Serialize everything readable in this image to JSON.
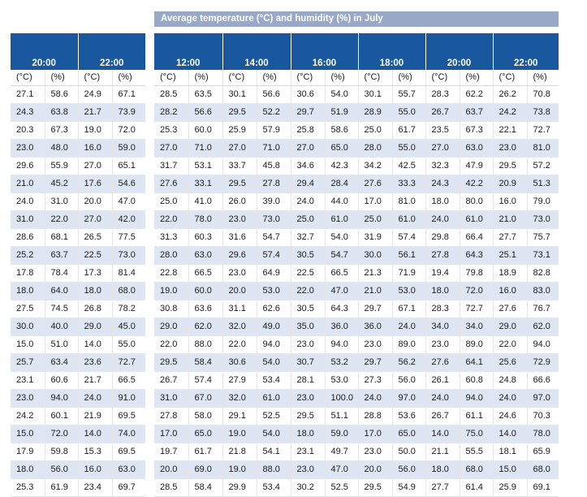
{
  "title": "Average temperature (°C) and humidity (%) in July",
  "unit_labels": [
    "(°C)",
    "(%)"
  ],
  "left_times": [
    "20:00",
    "22:00"
  ],
  "right_times": [
    "12:00",
    "14:00",
    "16:00",
    "18:00",
    "20:00",
    "22:00"
  ],
  "left_rows": [
    [
      "27.1",
      "58.6",
      "24.9",
      "67.1"
    ],
    [
      "24.3",
      "63.8",
      "21.7",
      "73.9"
    ],
    [
      "20.3",
      "67.3",
      "19.0",
      "72.0"
    ],
    [
      "23.0",
      "48.0",
      "16.0",
      "59.0"
    ],
    [
      "29.6",
      "55.9",
      "27.0",
      "65.1"
    ],
    [
      "21.0",
      "45.2",
      "17.6",
      "54.6"
    ],
    [
      "24.0",
      "31.0",
      "20.0",
      "47.0"
    ],
    [
      "31.0",
      "22.0",
      "27.0",
      "42.0"
    ],
    [
      "28.6",
      "68.1",
      "26.5",
      "77.5"
    ],
    [
      "25.2",
      "63.7",
      "22.5",
      "73.0"
    ],
    [
      "17.8",
      "78.4",
      "17.3",
      "81.4"
    ],
    [
      "18.0",
      "64.0",
      "18.0",
      "68.0"
    ],
    [
      "27.5",
      "74.5",
      "26.8",
      "78.2"
    ],
    [
      "30.0",
      "40.0",
      "29.0",
      "45.0"
    ],
    [
      "15.0",
      "51.0",
      "14.0",
      "55.0"
    ],
    [
      "25.7",
      "63.4",
      "23.6",
      "72.7"
    ],
    [
      "23.1",
      "60.6",
      "21.7",
      "66.5"
    ],
    [
      "23.0",
      "94.0",
      "24.0",
      "91.0"
    ],
    [
      "24.2",
      "60.1",
      "21.9",
      "69.5"
    ],
    [
      "15.0",
      "72.0",
      "14.0",
      "74.0"
    ],
    [
      "17.9",
      "59.8",
      "15.3",
      "69.5"
    ],
    [
      "18.0",
      "56.0",
      "16.0",
      "63.0"
    ],
    [
      "25.3",
      "61.9",
      "23.4",
      "69.7"
    ]
  ],
  "right_rows": [
    [
      "28.5",
      "63.5",
      "30.1",
      "56.6",
      "30.6",
      "54.0",
      "30.1",
      "55.7",
      "28.3",
      "62.2",
      "26.2",
      "70.8"
    ],
    [
      "28.2",
      "56.6",
      "29.5",
      "52.2",
      "29.7",
      "51.9",
      "28.9",
      "55.0",
      "26.7",
      "63.7",
      "24.2",
      "73.8"
    ],
    [
      "25.3",
      "60.0",
      "25.9",
      "57.9",
      "25.8",
      "58.6",
      "25.0",
      "61.7",
      "23.5",
      "67.3",
      "22.1",
      "72.7"
    ],
    [
      "27.0",
      "71.0",
      "27.0",
      "71.0",
      "27.0",
      "65.0",
      "28.0",
      "55.0",
      "27.0",
      "63.0",
      "23.0",
      "81.0"
    ],
    [
      "31.7",
      "53.1",
      "33.7",
      "45.8",
      "34.6",
      "42.3",
      "34.2",
      "42.5",
      "32.3",
      "47.9",
      "29.5",
      "57.2"
    ],
    [
      "27.6",
      "33.1",
      "29.5",
      "27.8",
      "29.4",
      "28.4",
      "27.6",
      "33.3",
      "24.3",
      "42.2",
      "20.9",
      "51.3"
    ],
    [
      "25.0",
      "41.0",
      "26.0",
      "39.0",
      "24.0",
      "44.0",
      "17.0",
      "81.0",
      "18.0",
      "80.0",
      "16.0",
      "79.0"
    ],
    [
      "22.0",
      "78.0",
      "23.0",
      "73.0",
      "25.0",
      "61.0",
      "25.0",
      "61.0",
      "24.0",
      "61.0",
      "21.0",
      "73.0"
    ],
    [
      "31.3",
      "60.3",
      "31.6",
      "54.7",
      "32.7",
      "54.0",
      "31.9",
      "57.4",
      "29.8",
      "66.4",
      "27.7",
      "75.7"
    ],
    [
      "28.0",
      "63.0",
      "29.6",
      "57.4",
      "30.5",
      "54.7",
      "30.0",
      "56.1",
      "27.8",
      "64.3",
      "25.1",
      "73.1"
    ],
    [
      "22.8",
      "66.5",
      "23.0",
      "64.9",
      "22.5",
      "66.5",
      "21.3",
      "71.9",
      "19.4",
      "79.8",
      "18.9",
      "82.8"
    ],
    [
      "19.0",
      "60.0",
      "20.0",
      "53.0",
      "22.0",
      "47.0",
      "21.0",
      "53.0",
      "18.0",
      "72.0",
      "16.0",
      "83.0"
    ],
    [
      "30.8",
      "63.6",
      "31.1",
      "62.6",
      "30.5",
      "64.3",
      "29.7",
      "67.1",
      "28.3",
      "72.7",
      "27.6",
      "76.7"
    ],
    [
      "29.0",
      "62.0",
      "32.0",
      "49.0",
      "35.0",
      "36.0",
      "36.0",
      "24.0",
      "34.0",
      "34.0",
      "29.0",
      "62.0"
    ],
    [
      "22.0",
      "88.0",
      "22.0",
      "94.0",
      "23.0",
      "94.0",
      "23.0",
      "89.0",
      "23.0",
      "89.0",
      "22.0",
      "94.0"
    ],
    [
      "29.5",
      "58.4",
      "30.6",
      "54.0",
      "30.7",
      "53.2",
      "29.7",
      "56.2",
      "27.6",
      "64.1",
      "25.6",
      "72.9"
    ],
    [
      "26.7",
      "57.4",
      "27.9",
      "53.4",
      "28.1",
      "53.0",
      "27.3",
      "56.0",
      "26.1",
      "60.8",
      "24.8",
      "66.6"
    ],
    [
      "31.0",
      "67.0",
      "32.0",
      "61.0",
      "23.0",
      "100.0",
      "24.0",
      "97.0",
      "24.0",
      "94.0",
      "24.0",
      "97.0"
    ],
    [
      "27.8",
      "58.0",
      "29.1",
      "52.5",
      "29.5",
      "51.1",
      "28.8",
      "53.6",
      "26.7",
      "61.1",
      "24.6",
      "70.3"
    ],
    [
      "17.0",
      "65.0",
      "19.0",
      "54.0",
      "18.0",
      "59.0",
      "17.0",
      "65.0",
      "14.0",
      "75.0",
      "14.0",
      "78.0"
    ],
    [
      "19.7",
      "61.7",
      "21.8",
      "54.1",
      "23.1",
      "49.7",
      "23.0",
      "50.0",
      "21.1",
      "55.5",
      "18.1",
      "65.9"
    ],
    [
      "20.0",
      "69.0",
      "19.0",
      "88.0",
      "23.0",
      "47.0",
      "20.0",
      "56.0",
      "18.0",
      "68.0",
      "15.0",
      "68.0"
    ],
    [
      "28.5",
      "58.4",
      "29.9",
      "53.4",
      "30.2",
      "52.5",
      "29.5",
      "54.9",
      "27.7",
      "61.4",
      "25.9",
      "69.1"
    ]
  ],
  "colors": {
    "header_bg": "#19579e",
    "banner_bg": "#98a8c6",
    "row_alt_bg": "#dde6f2"
  }
}
